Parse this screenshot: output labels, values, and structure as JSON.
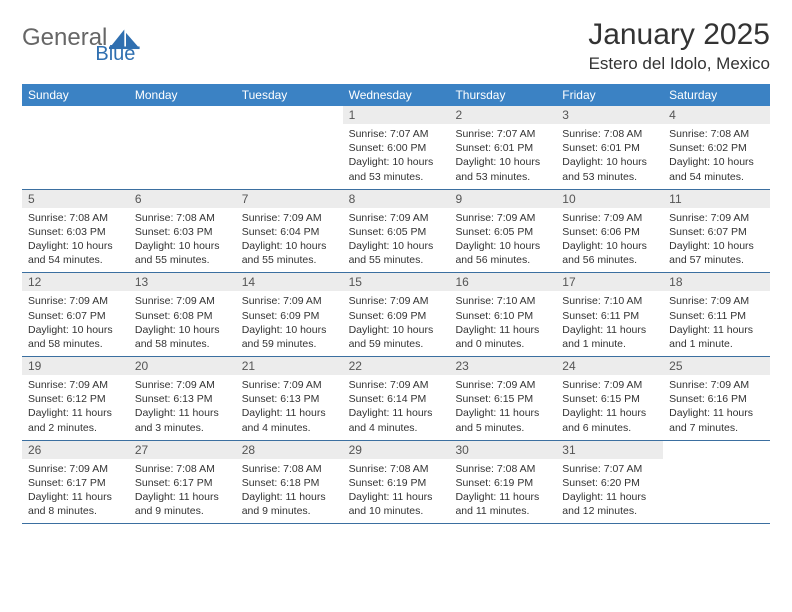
{
  "brand": {
    "part1": "General",
    "part2": "Blue"
  },
  "colors": {
    "header_bg": "#3b82c4",
    "header_text": "#ffffff",
    "daynum_bg": "#ececec",
    "week_border": "#3b6fa0",
    "body_text": "#333333",
    "logo_gray": "#666666",
    "logo_blue": "#2f6fb0"
  },
  "title": "January 2025",
  "location": "Estero del Idolo, Mexico",
  "dayNames": [
    "Sunday",
    "Monday",
    "Tuesday",
    "Wednesday",
    "Thursday",
    "Friday",
    "Saturday"
  ],
  "weeks": [
    [
      null,
      null,
      null,
      {
        "n": "1",
        "sr": "Sunrise: 7:07 AM",
        "ss": "Sunset: 6:00 PM",
        "d1": "Daylight: 10 hours",
        "d2": "and 53 minutes."
      },
      {
        "n": "2",
        "sr": "Sunrise: 7:07 AM",
        "ss": "Sunset: 6:01 PM",
        "d1": "Daylight: 10 hours",
        "d2": "and 53 minutes."
      },
      {
        "n": "3",
        "sr": "Sunrise: 7:08 AM",
        "ss": "Sunset: 6:01 PM",
        "d1": "Daylight: 10 hours",
        "d2": "and 53 minutes."
      },
      {
        "n": "4",
        "sr": "Sunrise: 7:08 AM",
        "ss": "Sunset: 6:02 PM",
        "d1": "Daylight: 10 hours",
        "d2": "and 54 minutes."
      }
    ],
    [
      {
        "n": "5",
        "sr": "Sunrise: 7:08 AM",
        "ss": "Sunset: 6:03 PM",
        "d1": "Daylight: 10 hours",
        "d2": "and 54 minutes."
      },
      {
        "n": "6",
        "sr": "Sunrise: 7:08 AM",
        "ss": "Sunset: 6:03 PM",
        "d1": "Daylight: 10 hours",
        "d2": "and 55 minutes."
      },
      {
        "n": "7",
        "sr": "Sunrise: 7:09 AM",
        "ss": "Sunset: 6:04 PM",
        "d1": "Daylight: 10 hours",
        "d2": "and 55 minutes."
      },
      {
        "n": "8",
        "sr": "Sunrise: 7:09 AM",
        "ss": "Sunset: 6:05 PM",
        "d1": "Daylight: 10 hours",
        "d2": "and 55 minutes."
      },
      {
        "n": "9",
        "sr": "Sunrise: 7:09 AM",
        "ss": "Sunset: 6:05 PM",
        "d1": "Daylight: 10 hours",
        "d2": "and 56 minutes."
      },
      {
        "n": "10",
        "sr": "Sunrise: 7:09 AM",
        "ss": "Sunset: 6:06 PM",
        "d1": "Daylight: 10 hours",
        "d2": "and 56 minutes."
      },
      {
        "n": "11",
        "sr": "Sunrise: 7:09 AM",
        "ss": "Sunset: 6:07 PM",
        "d1": "Daylight: 10 hours",
        "d2": "and 57 minutes."
      }
    ],
    [
      {
        "n": "12",
        "sr": "Sunrise: 7:09 AM",
        "ss": "Sunset: 6:07 PM",
        "d1": "Daylight: 10 hours",
        "d2": "and 58 minutes."
      },
      {
        "n": "13",
        "sr": "Sunrise: 7:09 AM",
        "ss": "Sunset: 6:08 PM",
        "d1": "Daylight: 10 hours",
        "d2": "and 58 minutes."
      },
      {
        "n": "14",
        "sr": "Sunrise: 7:09 AM",
        "ss": "Sunset: 6:09 PM",
        "d1": "Daylight: 10 hours",
        "d2": "and 59 minutes."
      },
      {
        "n": "15",
        "sr": "Sunrise: 7:09 AM",
        "ss": "Sunset: 6:09 PM",
        "d1": "Daylight: 10 hours",
        "d2": "and 59 minutes."
      },
      {
        "n": "16",
        "sr": "Sunrise: 7:10 AM",
        "ss": "Sunset: 6:10 PM",
        "d1": "Daylight: 11 hours",
        "d2": "and 0 minutes."
      },
      {
        "n": "17",
        "sr": "Sunrise: 7:10 AM",
        "ss": "Sunset: 6:11 PM",
        "d1": "Daylight: 11 hours",
        "d2": "and 1 minute."
      },
      {
        "n": "18",
        "sr": "Sunrise: 7:09 AM",
        "ss": "Sunset: 6:11 PM",
        "d1": "Daylight: 11 hours",
        "d2": "and 1 minute."
      }
    ],
    [
      {
        "n": "19",
        "sr": "Sunrise: 7:09 AM",
        "ss": "Sunset: 6:12 PM",
        "d1": "Daylight: 11 hours",
        "d2": "and 2 minutes."
      },
      {
        "n": "20",
        "sr": "Sunrise: 7:09 AM",
        "ss": "Sunset: 6:13 PM",
        "d1": "Daylight: 11 hours",
        "d2": "and 3 minutes."
      },
      {
        "n": "21",
        "sr": "Sunrise: 7:09 AM",
        "ss": "Sunset: 6:13 PM",
        "d1": "Daylight: 11 hours",
        "d2": "and 4 minutes."
      },
      {
        "n": "22",
        "sr": "Sunrise: 7:09 AM",
        "ss": "Sunset: 6:14 PM",
        "d1": "Daylight: 11 hours",
        "d2": "and 4 minutes."
      },
      {
        "n": "23",
        "sr": "Sunrise: 7:09 AM",
        "ss": "Sunset: 6:15 PM",
        "d1": "Daylight: 11 hours",
        "d2": "and 5 minutes."
      },
      {
        "n": "24",
        "sr": "Sunrise: 7:09 AM",
        "ss": "Sunset: 6:15 PM",
        "d1": "Daylight: 11 hours",
        "d2": "and 6 minutes."
      },
      {
        "n": "25",
        "sr": "Sunrise: 7:09 AM",
        "ss": "Sunset: 6:16 PM",
        "d1": "Daylight: 11 hours",
        "d2": "and 7 minutes."
      }
    ],
    [
      {
        "n": "26",
        "sr": "Sunrise: 7:09 AM",
        "ss": "Sunset: 6:17 PM",
        "d1": "Daylight: 11 hours",
        "d2": "and 8 minutes."
      },
      {
        "n": "27",
        "sr": "Sunrise: 7:08 AM",
        "ss": "Sunset: 6:17 PM",
        "d1": "Daylight: 11 hours",
        "d2": "and 9 minutes."
      },
      {
        "n": "28",
        "sr": "Sunrise: 7:08 AM",
        "ss": "Sunset: 6:18 PM",
        "d1": "Daylight: 11 hours",
        "d2": "and 9 minutes."
      },
      {
        "n": "29",
        "sr": "Sunrise: 7:08 AM",
        "ss": "Sunset: 6:19 PM",
        "d1": "Daylight: 11 hours",
        "d2": "and 10 minutes."
      },
      {
        "n": "30",
        "sr": "Sunrise: 7:08 AM",
        "ss": "Sunset: 6:19 PM",
        "d1": "Daylight: 11 hours",
        "d2": "and 11 minutes."
      },
      {
        "n": "31",
        "sr": "Sunrise: 7:07 AM",
        "ss": "Sunset: 6:20 PM",
        "d1": "Daylight: 11 hours",
        "d2": "and 12 minutes."
      },
      null
    ]
  ]
}
